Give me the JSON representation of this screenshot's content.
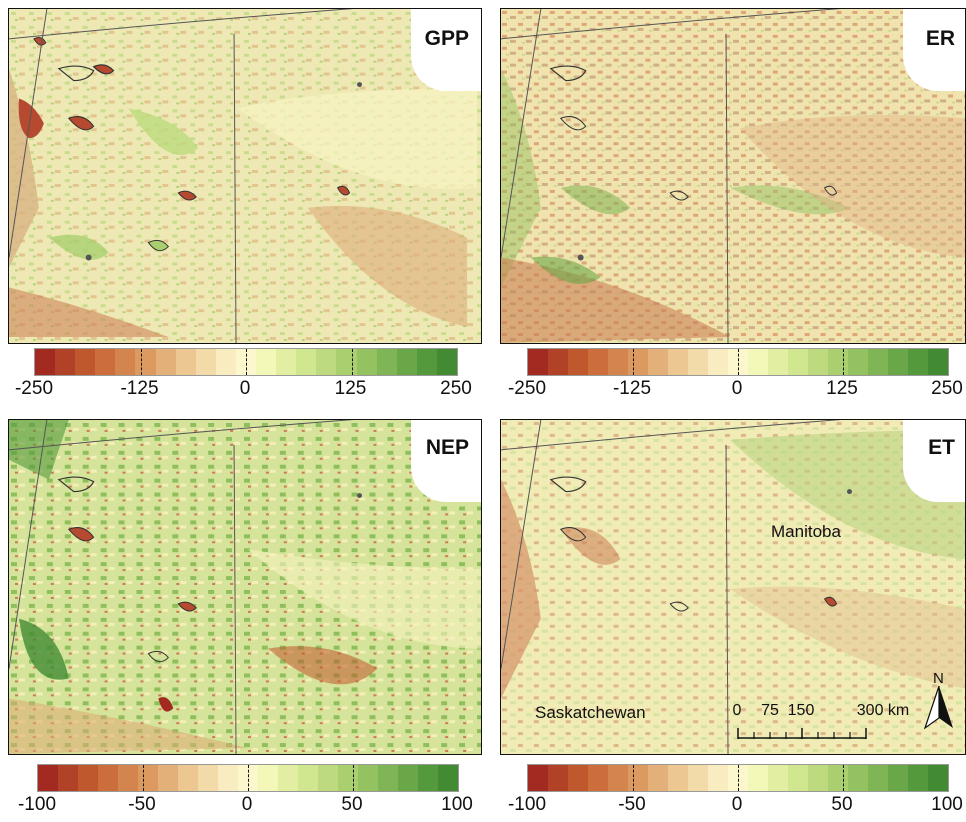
{
  "panels": [
    {
      "label": "GPP"
    },
    {
      "label": "ER"
    },
    {
      "label": "NEP"
    },
    {
      "label": "ET"
    }
  ],
  "colorbars": [
    {
      "ticks": [
        "-250",
        "-125",
        "0",
        "125",
        "250"
      ]
    },
    {
      "ticks": [
        "-250",
        "-125",
        "0",
        "125",
        "250"
      ]
    },
    {
      "ticks": [
        "-100",
        "-50",
        "0",
        "50",
        "100"
      ]
    },
    {
      "ticks": [
        "-100",
        "-50",
        "0",
        "50",
        "100"
      ]
    }
  ],
  "colors": {
    "ramp": [
      "#a32a20",
      "#b24227",
      "#c0582e",
      "#cb6e3c",
      "#d4854e",
      "#dc9a61",
      "#e4b079",
      "#ecc791",
      "#f2dba9",
      "#f8ecc0",
      "#fcf7cc",
      "#f3f7b8",
      "#e2efa2",
      "#d0e68f",
      "#bddb7e",
      "#a9cf6f",
      "#94c261",
      "#7fb554",
      "#6aa748",
      "#55993d",
      "#428b33"
    ],
    "boundary": "#555555",
    "frame": "#111111"
  },
  "places": {
    "manitoba": "Manitoba",
    "saskatchewan": "Saskatchewan"
  },
  "scalebar": {
    "labels": [
      "0",
      "75",
      "150",
      "300 km"
    ]
  },
  "north_arrow": {
    "letter": "N"
  }
}
